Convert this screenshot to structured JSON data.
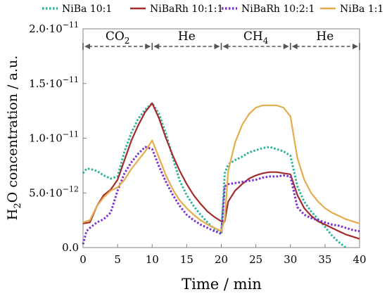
{
  "chart_data": {
    "type": "line",
    "title": "",
    "xlabel": "Time / min",
    "ylabel_main": "H",
    "ylabel_sub": "2",
    "ylabel_rest": "O concentration / a.u.",
    "xlim": [
      0,
      40
    ],
    "ylim": [
      0,
      2e-11
    ],
    "x_ticks": [
      0,
      5,
      10,
      15,
      20,
      25,
      30,
      35,
      40
    ],
    "x_tick_labels": [
      "0",
      "5",
      "10",
      "15",
      "20",
      "25",
      "30",
      "35",
      "40"
    ],
    "y_ticks": [
      0,
      5e-12,
      1e-11,
      1.5e-11,
      2e-11
    ],
    "y_tick_labels": [
      {
        "mantissa": "0.0",
        "exponent": ""
      },
      {
        "mantissa": "5.0·10",
        "exponent": "−12"
      },
      {
        "mantissa": "1.0·10",
        "exponent": "−11"
      },
      {
        "mantissa": "1.5·10",
        "exponent": "−11"
      },
      {
        "mantissa": "2.0·10",
        "exponent": "−11"
      }
    ],
    "grid": false,
    "legend_position": "top",
    "phases": [
      {
        "label_main": "CO",
        "label_sub": "2",
        "x0": 0,
        "x1": 10
      },
      {
        "label_main": "He",
        "label_sub": "",
        "x0": 10,
        "x1": 20
      },
      {
        "label_main": "CH",
        "label_sub": "4",
        "x0": 20,
        "x1": 30
      },
      {
        "label_main": "He",
        "label_sub": "",
        "x0": 30,
        "x1": 40
      }
    ],
    "series": [
      {
        "name": "NiBa 10:1",
        "color": "#2bb39a",
        "style": "dotted",
        "x": [
          0,
          0.5,
          1,
          2,
          3,
          4,
          5,
          6,
          7,
          8,
          9,
          10,
          11,
          12,
          13,
          14,
          15,
          16,
          17,
          18,
          19,
          20,
          20.5,
          21,
          22,
          23,
          24,
          25,
          26,
          27,
          28,
          29,
          30,
          31,
          32,
          33,
          34,
          35,
          36,
          37,
          38
        ],
        "y": [
          6.8e-12,
          7.2e-12,
          7.2e-12,
          7e-12,
          6.6e-12,
          6.3e-12,
          6.5e-12,
          8.8e-12,
          1.05e-11,
          1.18e-11,
          1.26e-11,
          1.32e-11,
          1.22e-11,
          1.04e-11,
          8.2e-12,
          6.1e-12,
          4.8e-12,
          3.8e-12,
          3e-12,
          2.3e-12,
          1.7e-12,
          1.2e-12,
          6.8e-12,
          7.6e-12,
          8e-12,
          8.3e-12,
          8.7e-12,
          8.9e-12,
          9.1e-12,
          9.2e-12,
          9e-12,
          8.8e-12,
          8.4e-12,
          5.6e-12,
          4.2e-12,
          3.3e-12,
          2.6e-12,
          1.9e-12,
          1.1e-12,
          5e-13,
          0
        ]
      },
      {
        "name": "NiBaRh 10:1:1",
        "color": "#a52a2a",
        "style": "solid",
        "x": [
          0,
          1,
          2,
          3,
          4,
          5,
          6,
          7,
          8,
          9,
          10,
          11,
          12,
          13,
          14,
          15,
          16,
          17,
          18,
          19,
          20,
          20.5,
          21,
          22,
          23,
          24,
          25,
          26,
          27,
          28,
          29,
          30,
          31,
          32,
          33,
          34,
          35,
          36,
          37,
          38,
          39,
          40
        ],
        "y": [
          2.2e-12,
          2.3e-12,
          3.8e-12,
          4.8e-12,
          5.3e-12,
          6.2e-12,
          8e-12,
          9.8e-12,
          1.12e-11,
          1.24e-11,
          1.32e-11,
          1.18e-11,
          1e-11,
          8.4e-12,
          7e-12,
          5.8e-12,
          4.8e-12,
          4e-12,
          3.3e-12,
          2.8e-12,
          2.4e-12,
          2.4e-12,
          4.2e-12,
          5.2e-12,
          5.8e-12,
          6.3e-12,
          6.6e-12,
          6.8e-12,
          6.9e-12,
          6.9e-12,
          6.8e-12,
          6.7e-12,
          4.8e-12,
          3.6e-12,
          2.9e-12,
          2.4e-12,
          2.1e-12,
          1.8e-12,
          1.5e-12,
          1.2e-12,
          1e-12,
          8e-13
        ]
      },
      {
        "name": "NiBaRh 10:2:1",
        "color": "#7b2fd1",
        "style": "dotted",
        "x": [
          0,
          0.5,
          1,
          2,
          3,
          4,
          5,
          6,
          7,
          8,
          9,
          10,
          11,
          12,
          13,
          14,
          15,
          16,
          17,
          18,
          19,
          20,
          20.5,
          21,
          22,
          23,
          24,
          25,
          26,
          27,
          28,
          29,
          30,
          31,
          32,
          33,
          34,
          35,
          36,
          37,
          38,
          39,
          40
        ],
        "y": [
          3e-13,
          1.5e-12,
          1.8e-12,
          2.3e-12,
          2.6e-12,
          3.2e-12,
          5.2e-12,
          6.8e-12,
          7.8e-12,
          8.6e-12,
          9.2e-12,
          9e-12,
          7.4e-12,
          6e-12,
          4.8e-12,
          3.8e-12,
          3e-12,
          2.5e-12,
          2.1e-12,
          1.8e-12,
          1.5e-12,
          1.3e-12,
          5.6e-12,
          5.8e-12,
          5.9e-12,
          6e-12,
          6.1e-12,
          6.2e-12,
          6.4e-12,
          6.5e-12,
          6.5e-12,
          6.6e-12,
          6.5e-12,
          3.7e-12,
          3e-12,
          2.7e-12,
          2.5e-12,
          2.3e-12,
          2.1e-12,
          2e-12,
          1.8e-12,
          1.6e-12,
          1.5e-12
        ]
      },
      {
        "name": "NiBa 1:1",
        "color": "#e6ac4c",
        "style": "solid",
        "x": [
          0,
          1,
          2,
          3,
          4,
          5,
          6,
          7,
          8,
          9,
          10,
          11,
          12,
          13,
          14,
          15,
          16,
          17,
          18,
          19,
          20,
          20.5,
          21,
          22,
          23,
          24,
          25,
          26,
          27,
          28,
          29,
          30,
          31,
          32,
          33,
          34,
          35,
          36,
          37,
          38,
          39,
          40
        ],
        "y": [
          2.3e-12,
          2.5e-12,
          3.8e-12,
          4.6e-12,
          5.2e-12,
          5.5e-12,
          6.2e-12,
          7.2e-12,
          8e-12,
          8.8e-12,
          9.8e-12,
          8.2e-12,
          6.6e-12,
          5.3e-12,
          4.3e-12,
          3.6e-12,
          3e-12,
          2.5e-12,
          2.1e-12,
          1.8e-12,
          1.5e-12,
          2.6e-12,
          7e-12,
          9.6e-12,
          1.12e-11,
          1.22e-11,
          1.28e-11,
          1.3e-11,
          1.3e-11,
          1.3e-11,
          1.28e-11,
          1.2e-11,
          8.2e-12,
          6.2e-12,
          5e-12,
          4.2e-12,
          3.6e-12,
          3.2e-12,
          2.9e-12,
          2.6e-12,
          2.4e-12,
          2.2e-12
        ]
      }
    ]
  }
}
